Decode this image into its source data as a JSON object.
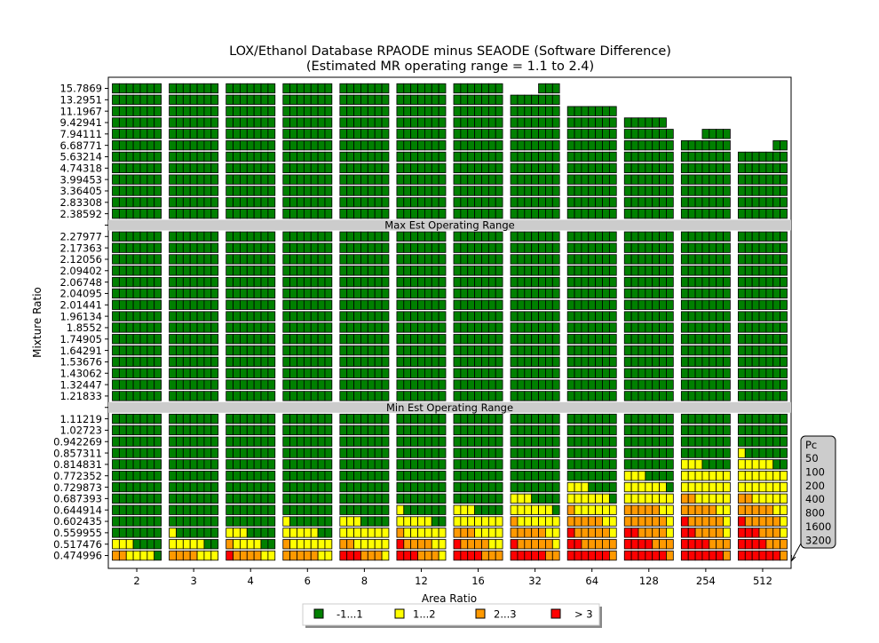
{
  "chart_data": {
    "type": "heatmap",
    "title": "LOX/Ethanol Database RPAODE minus SEAODE (Software Difference)",
    "subtitle": "(Estimated MR operating range = 1.1 to 2.4)",
    "xlabel": "Area Ratio",
    "ylabel": "Mixture Ratio",
    "area_ratios": [
      "2",
      "3",
      "4",
      "6",
      "8",
      "12",
      "16",
      "32",
      "64",
      "128",
      "254",
      "512"
    ],
    "mixture_ratios": [
      "15.7869",
      "13.2951",
      "11.1967",
      "9.42941",
      "7.94111",
      "6.68771",
      "5.63214",
      "4.74318",
      "3.99453",
      "3.36405",
      "2.83308",
      "2.38592",
      "2.27977",
      "2.17363",
      "2.12056",
      "2.09402",
      "2.06748",
      "2.04095",
      "2.01441",
      "1.96134",
      "1.8552",
      "1.74905",
      "1.64291",
      "1.53676",
      "1.43062",
      "1.32447",
      "1.21833",
      "1.11219",
      "1.02723",
      "0.942269",
      "0.857311",
      "0.814831",
      "0.772352",
      "0.729873",
      "0.687393",
      "0.644914",
      "0.602435",
      "0.559955",
      "0.517476",
      "0.474996"
    ],
    "chamber_pressures_legend_title": "Pc",
    "chamber_pressures": [
      "50",
      "100",
      "200",
      "400",
      "800",
      "1600",
      "3200"
    ],
    "bands": [
      {
        "label": "Max Est Operating Range",
        "after_mixture_ratio": "2.38592"
      },
      {
        "label": "Min Est Operating Range",
        "after_mixture_ratio": "1.21833"
      }
    ],
    "legend": [
      {
        "label": "-1...1",
        "code": 0,
        "color": "#008000"
      },
      {
        "label": "1...2",
        "code": 1,
        "color": "#ffff00"
      },
      {
        "label": "2...3",
        "code": 2,
        "color": "#ff9900"
      },
      {
        "label": "> 3",
        "code": 3,
        "color": "#ff0000"
      }
    ],
    "missing_cells": {
      "15.7869": {
        "32": [
          0,
          1,
          2,
          3
        ],
        "64": [
          0,
          1,
          2,
          3,
          4,
          5,
          6
        ],
        "128": [
          0,
          1,
          2,
          3,
          4,
          5,
          6
        ],
        "254": [
          0,
          1,
          2,
          3,
          4,
          5,
          6
        ],
        "512": [
          0,
          1,
          2,
          3,
          4,
          5,
          6
        ]
      },
      "13.2951": {
        "64": [
          0,
          1,
          2,
          3,
          4,
          5,
          6
        ],
        "128": [
          0,
          1,
          2,
          3,
          4,
          5,
          6
        ],
        "254": [
          0,
          1,
          2,
          3,
          4,
          5,
          6
        ],
        "512": [
          0,
          1,
          2,
          3,
          4,
          5,
          6
        ]
      },
      "11.1967": {
        "128": [
          0,
          1,
          2,
          3,
          4,
          5,
          6
        ],
        "254": [
          0,
          1,
          2,
          3,
          4,
          5,
          6
        ],
        "512": [
          0,
          1,
          2,
          3,
          4,
          5,
          6
        ]
      },
      "9.42941": {
        "128": [
          6
        ],
        "254": [
          0,
          1,
          2,
          3,
          4,
          5,
          6
        ],
        "512": [
          0,
          1,
          2,
          3,
          4,
          5,
          6
        ]
      },
      "7.94111": {
        "254": [
          0,
          1,
          2
        ],
        "512": [
          0,
          1,
          2,
          3,
          4,
          5,
          6
        ]
      },
      "6.68771": {
        "512": [
          0,
          1,
          2,
          3,
          4
        ]
      }
    },
    "category_rows": {
      "0.857311": {
        "512": [
          1,
          0,
          0,
          0,
          0,
          0,
          0
        ]
      },
      "0.814831": {
        "254": [
          1,
          1,
          1,
          0,
          0,
          0,
          0
        ],
        "512": [
          1,
          1,
          1,
          1,
          1,
          0,
          0
        ]
      },
      "0.772352": {
        "128": [
          1,
          1,
          1,
          0,
          0,
          0,
          0
        ],
        "254": [
          1,
          1,
          1,
          1,
          1,
          1,
          1
        ],
        "512": [
          1,
          1,
          1,
          1,
          1,
          1,
          1
        ]
      },
      "0.729873": {
        "64": [
          1,
          1,
          1,
          0,
          0,
          0,
          0
        ],
        "128": [
          1,
          1,
          1,
          1,
          1,
          1,
          0
        ],
        "254": [
          1,
          1,
          1,
          1,
          1,
          1,
          1
        ],
        "512": [
          1,
          1,
          1,
          1,
          1,
          1,
          1
        ]
      },
      "0.687393": {
        "32": [
          1,
          1,
          1,
          0,
          0,
          0,
          0
        ],
        "64": [
          1,
          1,
          1,
          1,
          1,
          1,
          0
        ],
        "128": [
          1,
          1,
          1,
          1,
          1,
          1,
          1
        ],
        "254": [
          2,
          2,
          1,
          1,
          1,
          1,
          1
        ],
        "512": [
          2,
          2,
          1,
          1,
          1,
          1,
          1
        ]
      },
      "0.644914": {
        "12": [
          1,
          0,
          0,
          0,
          0,
          0,
          0
        ],
        "16": [
          1,
          1,
          1,
          0,
          0,
          0,
          0
        ],
        "32": [
          1,
          1,
          1,
          1,
          1,
          1,
          0
        ],
        "64": [
          2,
          1,
          1,
          1,
          1,
          1,
          1
        ],
        "128": [
          2,
          2,
          2,
          2,
          2,
          1,
          1
        ],
        "254": [
          2,
          2,
          2,
          2,
          2,
          1,
          1
        ],
        "512": [
          2,
          2,
          2,
          2,
          2,
          1,
          1
        ]
      },
      "0.602435": {
        "6": [
          1,
          0,
          0,
          0,
          0,
          0,
          0
        ],
        "8": [
          1,
          1,
          1,
          0,
          0,
          0,
          0
        ],
        "12": [
          1,
          1,
          1,
          1,
          1,
          0,
          0
        ],
        "16": [
          1,
          1,
          1,
          1,
          1,
          1,
          1
        ],
        "32": [
          2,
          1,
          1,
          1,
          1,
          1,
          1
        ],
        "64": [
          2,
          2,
          2,
          2,
          2,
          1,
          1
        ],
        "128": [
          2,
          2,
          2,
          2,
          2,
          2,
          1
        ],
        "254": [
          3,
          2,
          2,
          2,
          2,
          2,
          1
        ],
        "512": [
          3,
          2,
          2,
          2,
          2,
          2,
          1
        ]
      },
      "0.559955": {
        "3": [
          1,
          0,
          0,
          0,
          0,
          0,
          0
        ],
        "4": [
          1,
          1,
          1,
          0,
          0,
          0,
          0
        ],
        "6": [
          1,
          1,
          1,
          1,
          1,
          0,
          0
        ],
        "8": [
          1,
          1,
          1,
          1,
          1,
          1,
          1
        ],
        "12": [
          2,
          1,
          1,
          1,
          1,
          1,
          1
        ],
        "16": [
          2,
          2,
          2,
          1,
          1,
          1,
          1
        ],
        "32": [
          2,
          2,
          2,
          2,
          2,
          1,
          1
        ],
        "64": [
          3,
          2,
          2,
          2,
          2,
          2,
          1
        ],
        "128": [
          3,
          3,
          2,
          2,
          2,
          2,
          1
        ],
        "254": [
          3,
          3,
          2,
          2,
          2,
          2,
          1
        ],
        "512": [
          3,
          3,
          3,
          2,
          2,
          2,
          1
        ]
      },
      "0.517476": {
        "2": [
          1,
          1,
          1,
          0,
          0,
          0,
          0
        ],
        "3": [
          1,
          1,
          1,
          1,
          1,
          0,
          0
        ],
        "4": [
          2,
          1,
          1,
          1,
          1,
          0,
          0
        ],
        "6": [
          2,
          1,
          1,
          1,
          1,
          1,
          1
        ],
        "8": [
          2,
          2,
          1,
          1,
          1,
          1,
          1
        ],
        "12": [
          3,
          2,
          2,
          2,
          2,
          1,
          1
        ],
        "16": [
          3,
          2,
          2,
          2,
          2,
          1,
          1
        ],
        "32": [
          3,
          2,
          2,
          2,
          2,
          2,
          1
        ],
        "64": [
          3,
          3,
          2,
          2,
          2,
          2,
          2
        ],
        "128": [
          3,
          3,
          3,
          3,
          2,
          2,
          2
        ],
        "254": [
          3,
          3,
          3,
          3,
          2,
          2,
          2
        ],
        "512": [
          3,
          3,
          3,
          3,
          2,
          2,
          2
        ]
      },
      "0.474996": {
        "2": [
          2,
          2,
          1,
          1,
          1,
          1,
          0
        ],
        "3": [
          2,
          2,
          2,
          2,
          1,
          1,
          1
        ],
        "4": [
          3,
          2,
          2,
          2,
          2,
          1,
          1
        ],
        "6": [
          2,
          2,
          2,
          2,
          2,
          1,
          1
        ],
        "8": [
          3,
          3,
          3,
          2,
          2,
          2,
          1
        ],
        "12": [
          3,
          3,
          3,
          2,
          2,
          2,
          1
        ],
        "16": [
          3,
          3,
          3,
          3,
          2,
          2,
          2
        ],
        "32": [
          3,
          3,
          3,
          3,
          3,
          2,
          2
        ],
        "64": [
          3,
          3,
          3,
          3,
          3,
          3,
          2
        ],
        "128": [
          3,
          3,
          3,
          3,
          3,
          3,
          2
        ],
        "254": [
          3,
          3,
          3,
          3,
          3,
          3,
          2
        ],
        "512": [
          3,
          3,
          3,
          3,
          3,
          3,
          2
        ]
      }
    }
  }
}
